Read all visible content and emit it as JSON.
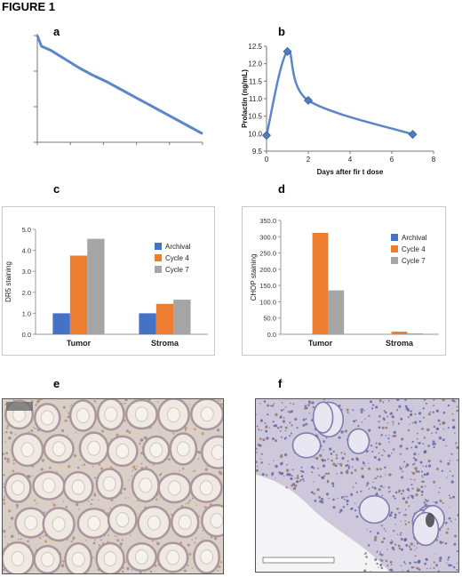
{
  "figure": {
    "title": "FIGURE 1"
  },
  "panels": {
    "a": "a",
    "b": "b",
    "c": "c",
    "d": "d",
    "e": "e",
    "f": "f"
  },
  "colors": {
    "line": "#5b87c8",
    "marker": "#4a7fc0",
    "archival": "#4472c4",
    "cycle4": "#ed7d31",
    "cycle7": "#a5a5a5",
    "micro_e_bg": "#d9cfc6",
    "micro_f_bg": "#cdc8dc"
  },
  "chart_data": [
    {
      "id": "a",
      "type": "line",
      "title": "",
      "xlabel": "",
      "ylabel": "",
      "series": [
        {
          "x": [
            0,
            0.3,
            1,
            2,
            3,
            4,
            5,
            6,
            7,
            8,
            9,
            10,
            11,
            12
          ],
          "y": [
            100,
            90,
            86,
            78,
            70,
            63,
            57,
            50,
            43,
            36,
            29,
            22,
            15,
            8
          ]
        }
      ],
      "xlim": [
        0,
        12
      ],
      "ylim": [
        0,
        100
      ]
    },
    {
      "id": "b",
      "type": "line",
      "title": "",
      "xlabel": "Days after fir t dose",
      "ylabel": "Prolactin (ng/mL)",
      "x": [
        0,
        1,
        2,
        7
      ],
      "y": [
        9.95,
        12.35,
        10.95,
        9.98
      ],
      "xlim": [
        0,
        8
      ],
      "ylim": [
        9.5,
        12.5
      ],
      "xticks": [
        "0",
        "2",
        "4",
        "6",
        "8"
      ],
      "yticks": [
        "9.5",
        "10.0",
        "10.5",
        "11.0",
        "11.5",
        "12.0",
        "12.5"
      ]
    },
    {
      "id": "c",
      "type": "bar",
      "ylabel": "DR5 staining",
      "categories": [
        "Tumor",
        "Stroma"
      ],
      "series": [
        {
          "name": "Archival",
          "values": [
            1.0,
            1.0
          ]
        },
        {
          "name": "Cycle 4",
          "values": [
            3.75,
            1.45
          ]
        },
        {
          "name": "Cycle 7",
          "values": [
            4.55,
            1.65
          ]
        }
      ],
      "ylim": [
        0,
        5
      ],
      "yticks": [
        "0.0",
        "1.0",
        "2.0",
        "3.0",
        "4.0",
        "5.0"
      ],
      "legend": "right"
    },
    {
      "id": "d",
      "type": "bar",
      "ylabel": "CHOP staining",
      "categories": [
        "Tumor",
        "Stroma"
      ],
      "series": [
        {
          "name": "Archival",
          "values": [
            0,
            0
          ]
        },
        {
          "name": "Cycle 4",
          "values": [
            312,
            8
          ]
        },
        {
          "name": "Cycle 7",
          "values": [
            135,
            3
          ]
        }
      ],
      "ylim": [
        0,
        350
      ],
      "yticks": [
        "0.0",
        "50.0",
        "100.0",
        "150.0",
        "200.0",
        "250.0",
        "300.0",
        "350.0"
      ],
      "legend": "right"
    }
  ]
}
